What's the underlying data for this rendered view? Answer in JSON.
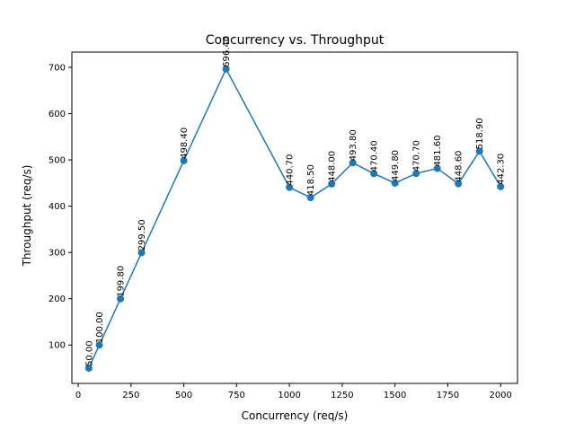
{
  "chart_data": {
    "type": "line",
    "title": "Concurrency vs. Throughput",
    "xlabel": "Concurrency (req/s)",
    "ylabel": "Throughput (req/s)",
    "xlim": [
      -30,
      2080
    ],
    "ylim": [
      17,
      733
    ],
    "xticks": [
      0,
      250,
      500,
      750,
      1000,
      1250,
      1500,
      1750,
      2000
    ],
    "yticks": [
      100,
      200,
      300,
      400,
      500,
      600,
      700
    ],
    "grid": false,
    "color": "#1f77b4",
    "series": [
      {
        "x": [
          50,
          100,
          200,
          300,
          500,
          700,
          1000,
          1100,
          1200,
          1300,
          1400,
          1500,
          1600,
          1700,
          1800,
          1900,
          2000
        ],
        "y": [
          50.0,
          100.0,
          199.8,
          299.5,
          498.4,
          696.4,
          440.7,
          418.5,
          448.0,
          493.8,
          470.4,
          449.8,
          470.7,
          481.6,
          448.6,
          518.9,
          442.3
        ],
        "labels": [
          "50.00",
          "100.00",
          "199.80",
          "299.50",
          "498.40",
          "696.40",
          "440.70",
          "418.50",
          "448.00",
          "493.80",
          "470.40",
          "449.80",
          "470.70",
          "481.60",
          "448.60",
          "518.90",
          "442.30"
        ]
      }
    ]
  }
}
